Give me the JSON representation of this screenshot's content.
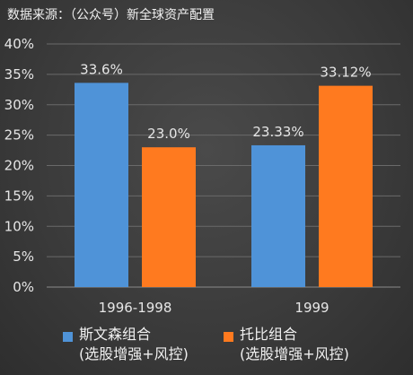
{
  "source_text": "数据来源：（公众号）新全球资产配置",
  "colors": {
    "series1": "#4f93d8",
    "series2": "#ff7a1f",
    "grid": "#6a6a6a",
    "text": "#e6e6e6"
  },
  "chart_data": {
    "type": "bar",
    "categories": [
      "1996-1998",
      "1999"
    ],
    "series": [
      {
        "name_line1": "斯文森组合",
        "name_line2": "(选股增强+风控)",
        "values": [
          33.6,
          23.33
        ],
        "labels": [
          "33.6%",
          "23.33%"
        ]
      },
      {
        "name_line1": "托比组合",
        "name_line2": "(选股增强+风控)",
        "values": [
          23.0,
          33.12
        ],
        "labels": [
          "23.0%",
          "33.12%"
        ]
      }
    ],
    "ylim": [
      0,
      40
    ],
    "yticks": [
      "0%",
      "5%",
      "10%",
      "15%",
      "20%",
      "25%",
      "30%",
      "35%",
      "40%"
    ],
    "grid": true,
    "legend_position": "bottom"
  }
}
